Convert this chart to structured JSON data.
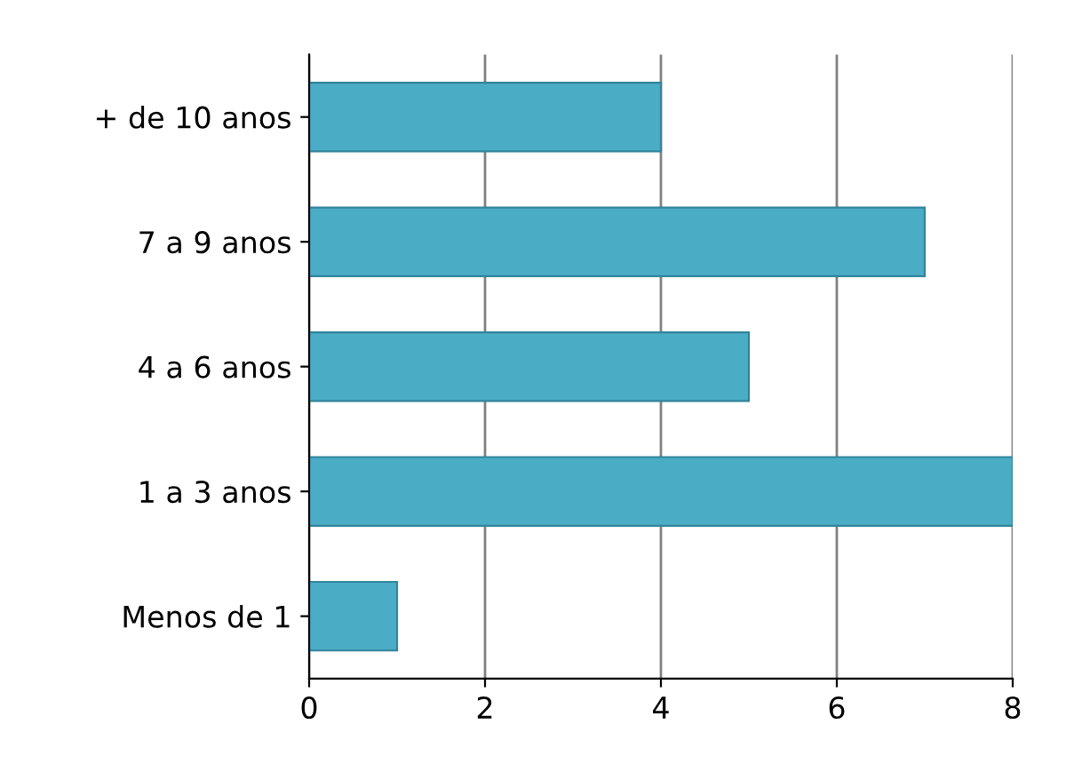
{
  "chart_data": {
    "type": "bar",
    "orientation": "horizontal",
    "categories": [
      "+ de 10 anos",
      "7 a 9 anos",
      "4 a 6 anos",
      "1 a 3 anos",
      "Menos de 1"
    ],
    "values": [
      4,
      7,
      5,
      8,
      1
    ],
    "color": "#4bacc6",
    "xlim": [
      0,
      8
    ],
    "xticks": [
      0,
      2,
      4,
      6,
      8
    ],
    "grid": "x"
  }
}
